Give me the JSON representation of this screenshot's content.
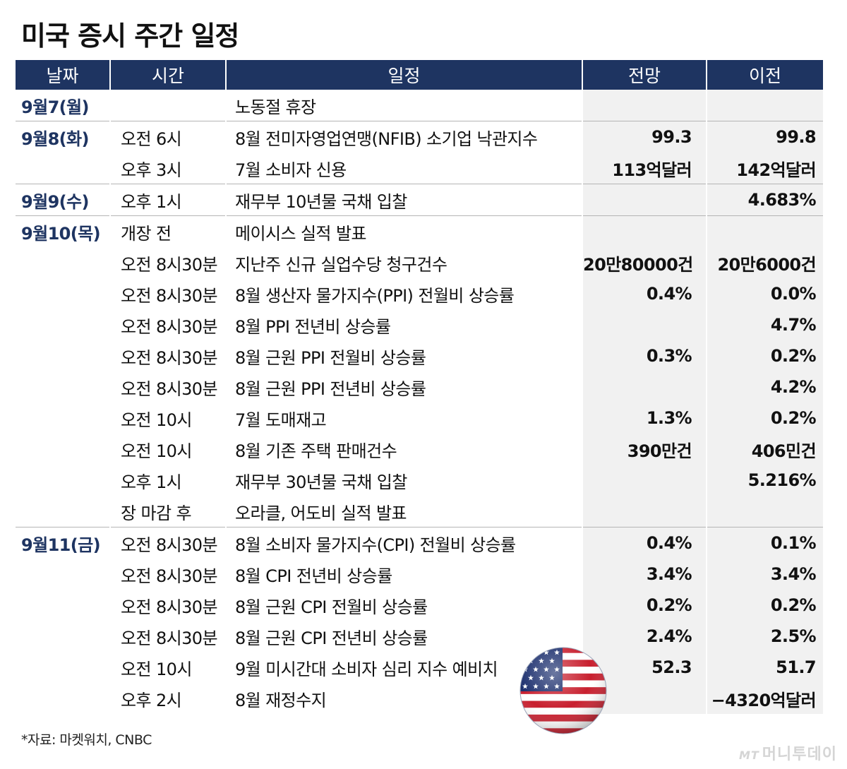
{
  "title": "미국 증시 주간 일정",
  "headers": [
    "날짜",
    "시간",
    "일정",
    "전망",
    "이전"
  ],
  "rows": [
    {
      "date": "9월7(월)",
      "time": "",
      "event": "노동절 휴장",
      "forecast": "",
      "previous": "",
      "group_start": true
    },
    {
      "date": "9월8(화)",
      "time": "오전 6시",
      "event": "8월 전미자영업연맹(NFIB) 소기업 낙관지수",
      "forecast": "99.3",
      "previous": "99.8",
      "group_start": true
    },
    {
      "date": "",
      "time": "오후 3시",
      "event": "7월 소비자 신용",
      "forecast": "113억달러",
      "previous": "142억달러",
      "group_start": false
    },
    {
      "date": "9월9(수)",
      "time": "오후 1시",
      "event": "재무부 10년물 국채 입찰",
      "forecast": "",
      "previous": "4.683%",
      "group_start": true
    },
    {
      "date": "9월10(목)",
      "time": "개장 전",
      "event": "메이시스 실적 발표",
      "forecast": "",
      "previous": "",
      "group_start": true
    },
    {
      "date": "",
      "time": "오전 8시30분",
      "event": "지난주 신규 실업수당 청구건수",
      "forecast": "20만80000건",
      "previous": "20만6000건",
      "group_start": false
    },
    {
      "date": "",
      "time": "오전 8시30분",
      "event": "8월 생산자 물가지수(PPI) 전월비 상승률",
      "forecast": "0.4%",
      "previous": "0.0%",
      "group_start": false
    },
    {
      "date": "",
      "time": "오전 8시30분",
      "event": "8월 PPI 전년비 상승률",
      "forecast": "",
      "previous": "4.7%",
      "group_start": false
    },
    {
      "date": "",
      "time": "오전 8시30분",
      "event": "8월 근원 PPI 전월비 상승률",
      "forecast": "0.3%",
      "previous": "0.2%",
      "group_start": false
    },
    {
      "date": "",
      "time": "오전 8시30분",
      "event": "8월 근원 PPI 전년비 상승률",
      "forecast": "",
      "previous": "4.2%",
      "group_start": false
    },
    {
      "date": "",
      "time": "오전 10시",
      "event": "7월 도매재고",
      "forecast": "1.3%",
      "previous": "0.2%",
      "group_start": false
    },
    {
      "date": "",
      "time": "오전 10시",
      "event": "8월 기존 주택 판매건수",
      "forecast": "390만건",
      "previous": "406민건",
      "group_start": false
    },
    {
      "date": "",
      "time": "오후 1시",
      "event": "재무부 30년물 국채 입찰",
      "forecast": "",
      "previous": "5.216%",
      "group_start": false
    },
    {
      "date": "",
      "time": "장 마감 후",
      "event": "오라클, 어도비 실적 발표",
      "forecast": "",
      "previous": "",
      "group_start": false
    },
    {
      "date": "9월11(금)",
      "time": "오전 8시30분",
      "event": "8월 소비자 물가지수(CPI) 전월비 상승률",
      "forecast": "0.4%",
      "previous": "0.1%",
      "group_start": true
    },
    {
      "date": "",
      "time": "오전 8시30분",
      "event": "8월 CPI 전년비 상승률",
      "forecast": "3.4%",
      "previous": "3.4%",
      "group_start": false
    },
    {
      "date": "",
      "time": "오전 8시30분",
      "event": "8월 근원 CPI 전월비 상승률",
      "forecast": "0.2%",
      "previous": "0.2%",
      "group_start": false
    },
    {
      "date": "",
      "time": "오전 8시30분",
      "event": "8월 근원 CPI 전년비 상승률",
      "forecast": "2.4%",
      "previous": "2.5%",
      "group_start": false
    },
    {
      "date": "",
      "time": "오전 10시",
      "event": "9월 미시간대 소비자 심리 지수 예비치",
      "forecast": "52.3",
      "previous": "51.7",
      "group_start": false
    },
    {
      "date": "",
      "time": "오후 2시",
      "event": "8월 재정수지",
      "forecast": "",
      "previous": "−4320억달러",
      "group_start": false
    }
  ],
  "footnote": "*자료: 마켓워치, CNBC",
  "credit": {
    "mt": "MT",
    "brand": "머니투데이"
  },
  "flag_icon": "us-flag-icon",
  "colors": {
    "header_bg": "#1e3461",
    "date_text": "#1e3461",
    "value_bg": "#f1f1f1"
  }
}
